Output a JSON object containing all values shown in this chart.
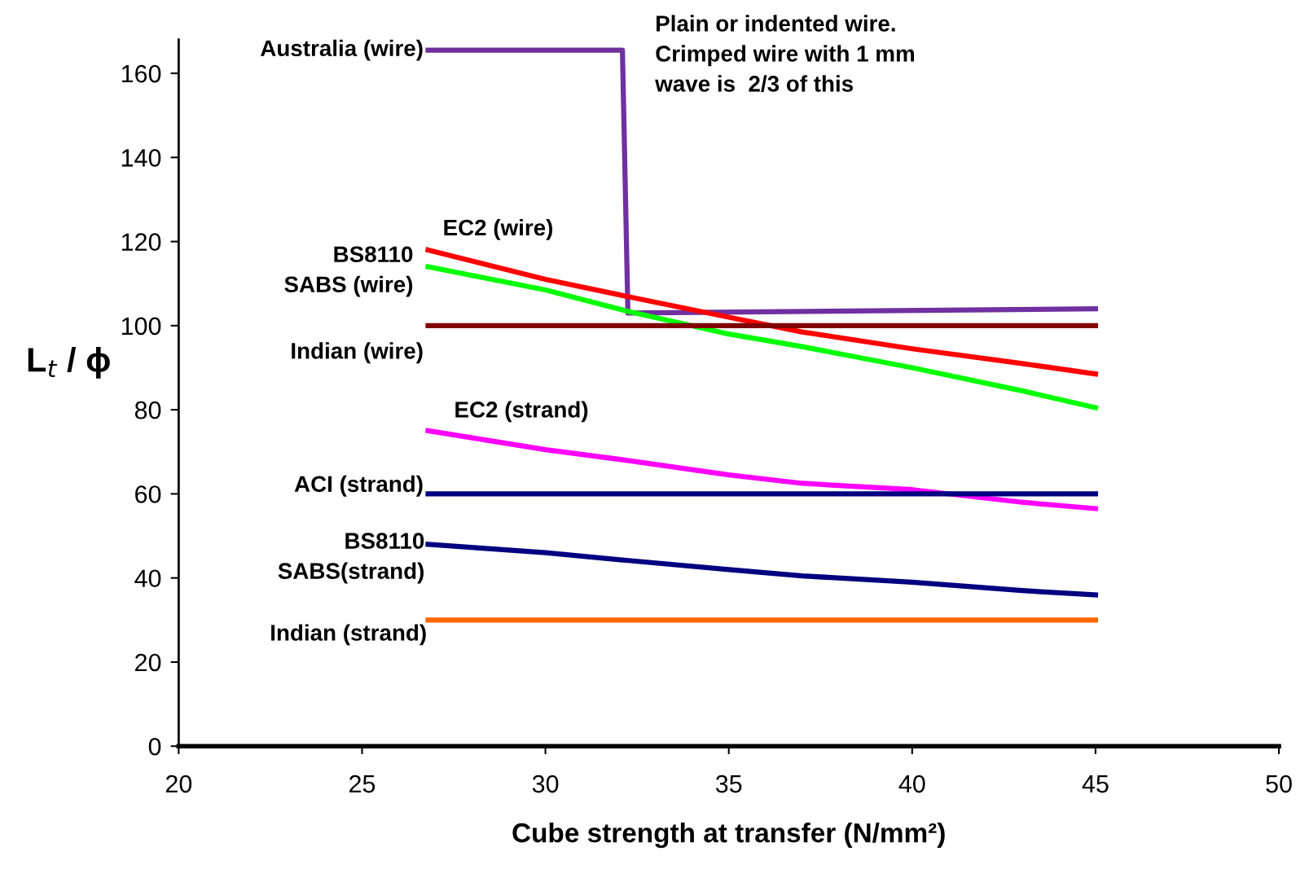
{
  "chart_data": {
    "type": "line",
    "xlabel": "Cube strength at transfer (N/mm²)",
    "ylabel": "L$_{t}$ / ϕ",
    "xlim": [
      20,
      50
    ],
    "xticks": [
      20,
      25,
      30,
      35,
      40,
      45,
      50
    ],
    "ylim": [
      0,
      168
    ],
    "yticks": [
      0,
      20,
      40,
      60,
      80,
      100,
      120,
      140,
      160
    ],
    "grid": false,
    "series": [
      {
        "name": "Australia (wire)",
        "color": "#7030a0",
        "x": [
          26.8,
          32.1,
          32.25,
          45
        ],
        "values": [
          165.5,
          165.5,
          103,
          104
        ]
      },
      {
        "name": "EC2 (wire)",
        "color": "#ff0000",
        "x": [
          26.8,
          30,
          32.2,
          35,
          37,
          40,
          43,
          45
        ],
        "values": [
          118,
          111,
          107,
          102,
          98.5,
          94.5,
          91,
          88.5
        ]
      },
      {
        "name": "BS8110\nSABS (wire)",
        "color": "#00ff00",
        "x": [
          26.8,
          30,
          32.2,
          35,
          37,
          40,
          43,
          45
        ],
        "values": [
          114,
          108.5,
          103.5,
          98,
          95,
          90,
          84.5,
          80.5
        ]
      },
      {
        "name": "Indian (wire)",
        "color": "#800000",
        "x": [
          26.8,
          45
        ],
        "values": [
          100,
          100
        ]
      },
      {
        "name": "EC2 (strand)",
        "color": "#ff00ff",
        "x": [
          26.8,
          30,
          32.2,
          35,
          37,
          40,
          43,
          45
        ],
        "values": [
          75,
          70.5,
          68,
          64.5,
          62.5,
          61,
          58,
          56.5
        ]
      },
      {
        "name": "ACI (strand)",
        "color": "#000080",
        "x": [
          26.8,
          45
        ],
        "values": [
          60,
          60
        ]
      },
      {
        "name": "BS8110\nSABS(strand)",
        "color": "#000080",
        "x": [
          26.8,
          30,
          32.2,
          35,
          37,
          40,
          43,
          45
        ],
        "values": [
          48,
          46,
          44.2,
          42,
          40.5,
          39,
          37,
          36
        ]
      },
      {
        "name": "Indian (strand)",
        "color": "#ff6600",
        "x": [
          26.8,
          45
        ],
        "values": [
          30,
          30
        ]
      }
    ],
    "annotations": [
      "Plain or indented wire.\nCrimped wire with 1 mm\nwave is  2/3 of this"
    ]
  }
}
